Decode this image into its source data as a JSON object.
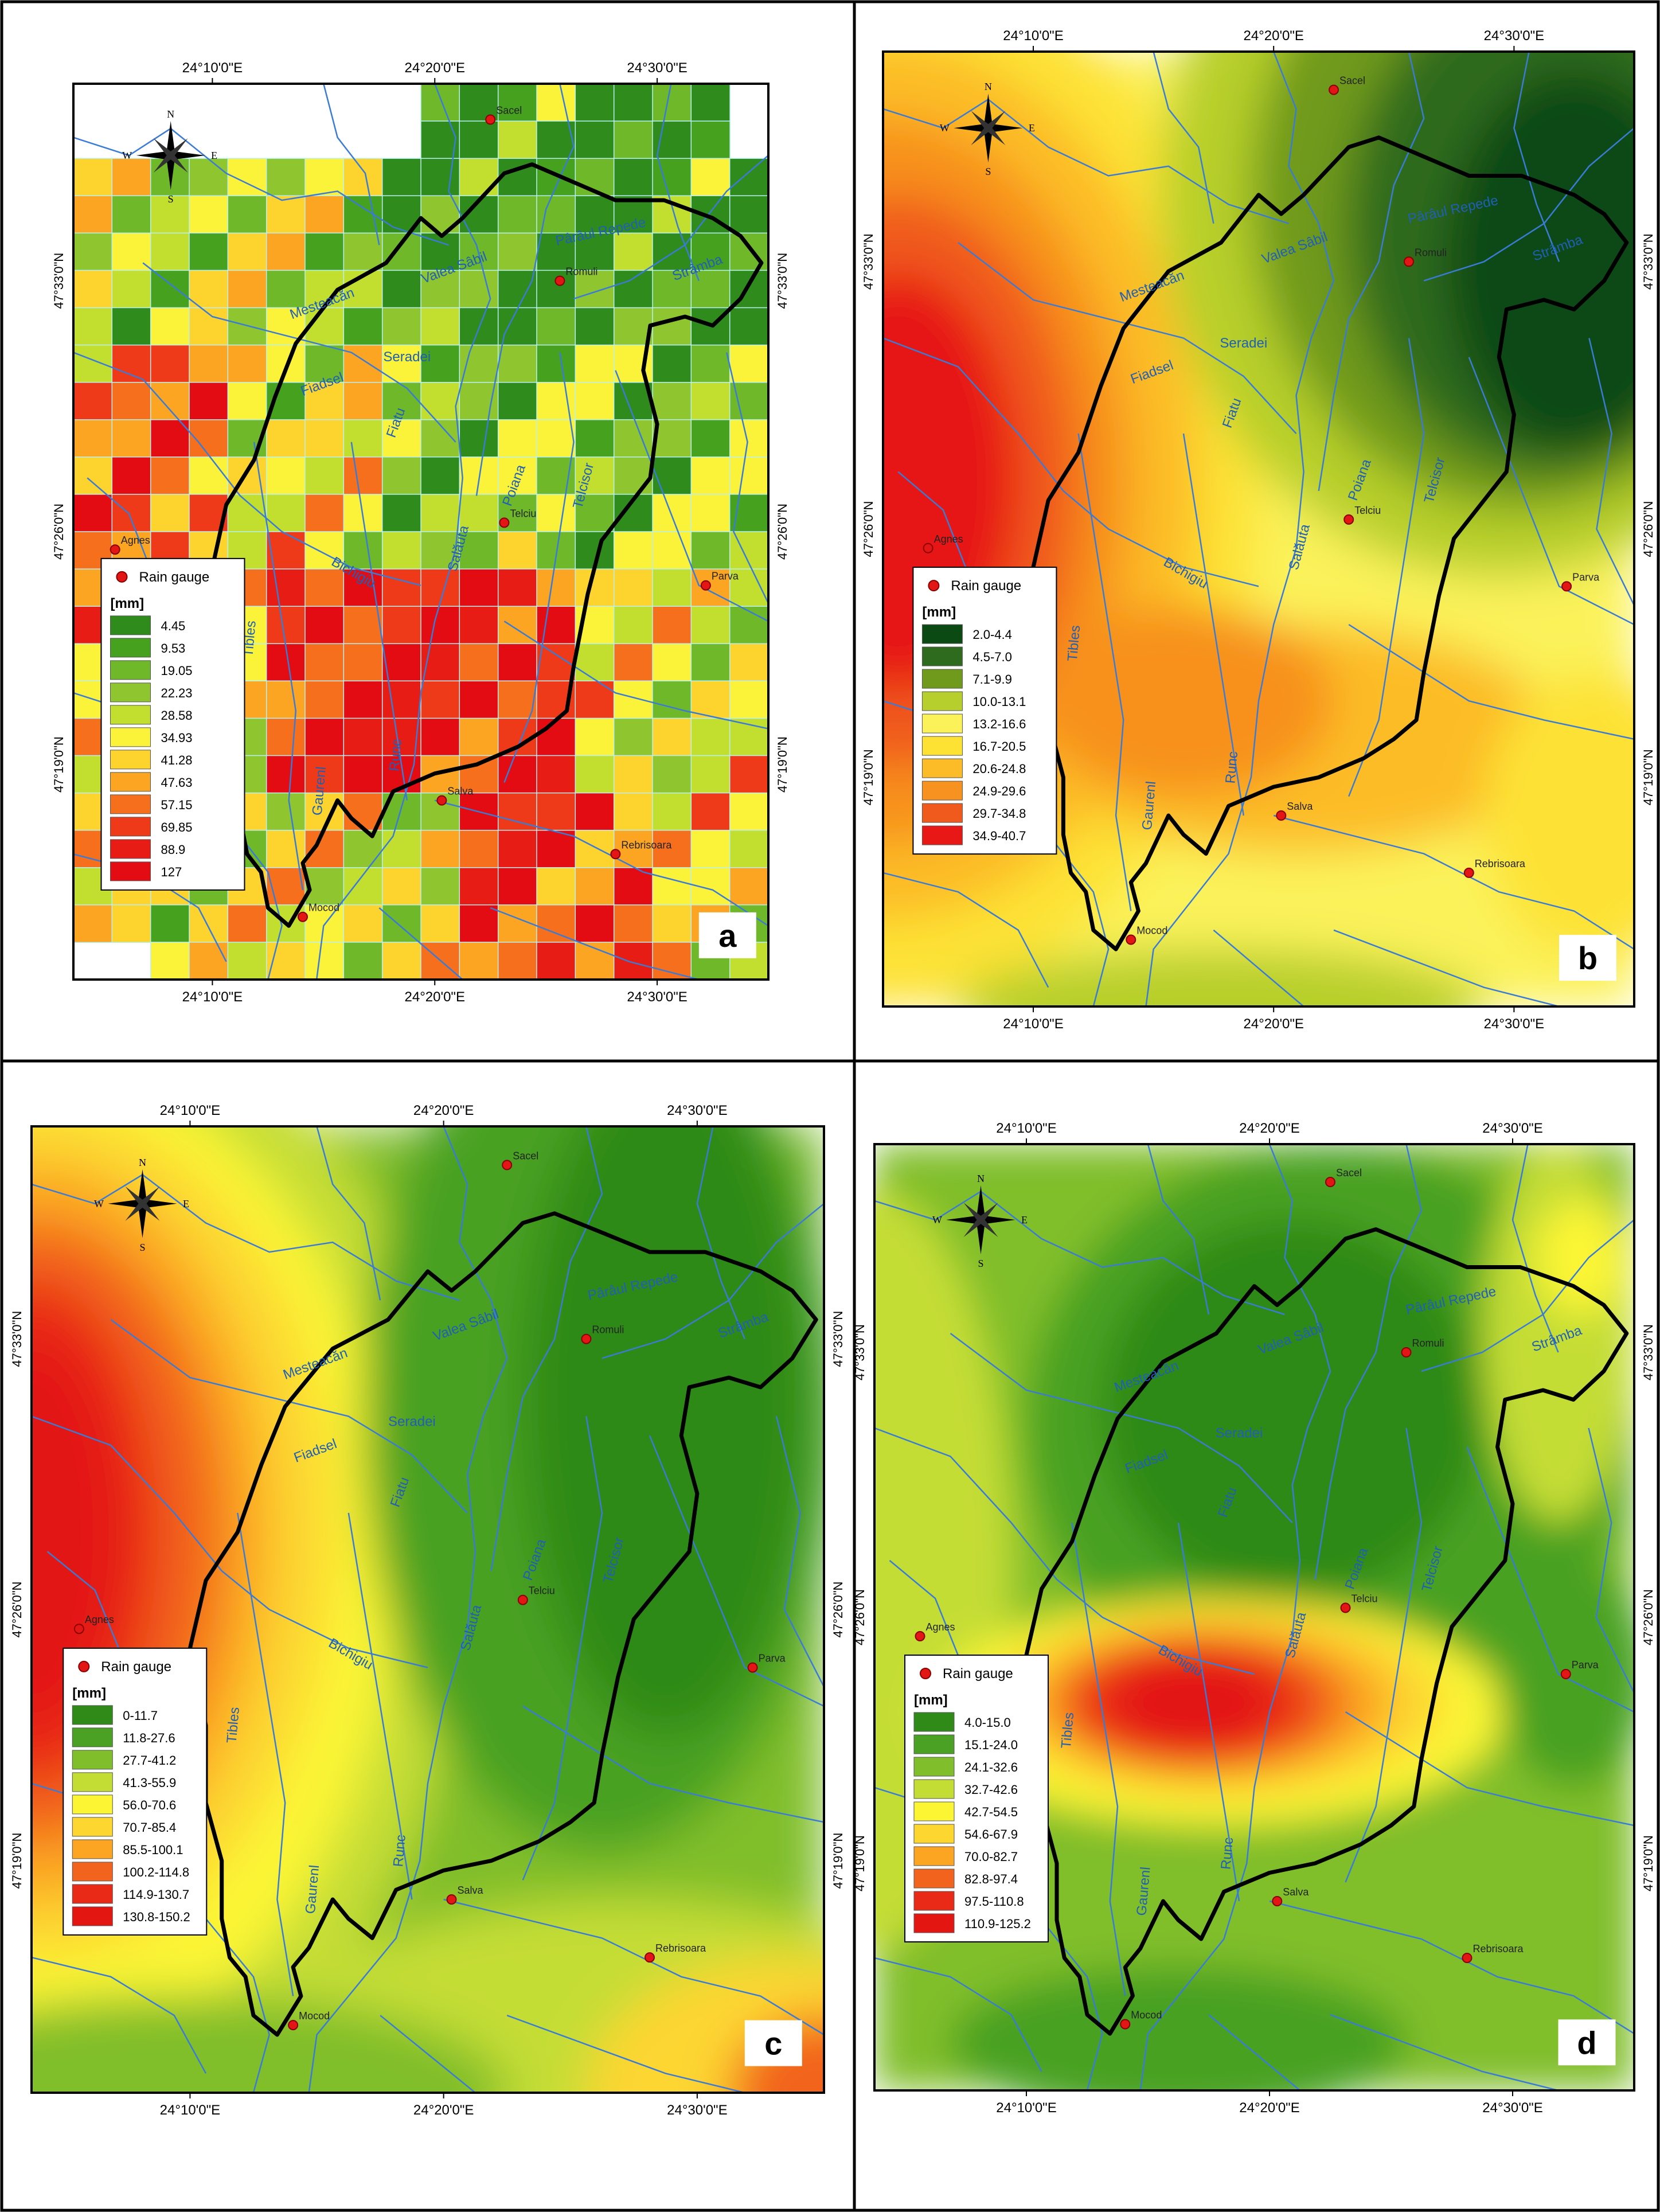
{
  "lon_ticks": [
    "24°10'0\"E",
    "24°20'0\"E",
    "24°30'0\"E"
  ],
  "lat_ticks": [
    "47°33'0\"N",
    "47°26'0\"N",
    "47°19'0\"N"
  ],
  "compass": {
    "n": "N",
    "s": "S",
    "e": "E",
    "w": "W"
  },
  "legend": {
    "gauge_label": "Rain gauge",
    "unit": "[mm]"
  },
  "gauges": [
    "Sacel",
    "Romuli",
    "Agnes",
    "Telciu",
    "Parva",
    "Salva",
    "Rebrisoara",
    "Mocod"
  ],
  "rivers": [
    "Pârâul Repede",
    "Valea Sâbil",
    "Strâmba",
    "Seradei",
    "Fiadsel",
    "Fiatu",
    "Poiana",
    "Telcisor",
    "Salăuta",
    "Bichigiu",
    "Tibles",
    "Gaurenl",
    "Runc",
    "Mesteacăn"
  ],
  "panels": [
    {
      "letter": "a",
      "classes": [
        "4.45",
        "9.53",
        "19.05",
        "22.23",
        "28.58",
        "34.93",
        "41.28",
        "47.63",
        "57.15",
        "69.85",
        "88.9",
        "127"
      ]
    },
    {
      "letter": "b",
      "classes": [
        "2.0-4.4",
        "4.5-7.0",
        "7.1-9.9",
        "10.0-13.1",
        "13.2-16.6",
        "16.7-20.5",
        "20.6-24.8",
        "24.9-29.6",
        "29.7-34.8",
        "34.9-40.7"
      ]
    },
    {
      "letter": "c",
      "classes": [
        "0-11.7",
        "11.8-27.6",
        "27.7-41.2",
        "41.3-55.9",
        "56.0-70.6",
        "70.7-85.4",
        "85.5-100.1",
        "100.2-114.8",
        "114.9-130.7",
        "130.8-150.2"
      ]
    },
    {
      "letter": "d",
      "classes": [
        "4.0-15.0",
        "15.1-24.0",
        "24.1-32.6",
        "32.7-42.6",
        "42.7-54.5",
        "54.6-67.9",
        "70.0-82.7",
        "82.8-97.4",
        "97.5-110.8",
        "110.9-125.2"
      ]
    }
  ],
  "colors": {
    "ramp12": [
      "#2e8b1c",
      "#46a11f",
      "#6eb82a",
      "#8fc52e",
      "#c2df2f",
      "#fbf33a",
      "#fdd32d",
      "#fba522",
      "#f56f1d",
      "#ee3a18",
      "#e61c15",
      "#e30c12"
    ],
    "ramp10_b": [
      "#0c4a14",
      "#2f6b1e",
      "#6f9a1c",
      "#b7cf2c",
      "#fbf25a",
      "#fde234",
      "#fcbc27",
      "#f7911f",
      "#f05a1c",
      "#e71816"
    ],
    "ramp10_cd": [
      "#2f8a18",
      "#4aa123",
      "#80be2c",
      "#c4dd34",
      "#fbf534",
      "#fdd630",
      "#fba523",
      "#f2641d",
      "#e92a17",
      "#e31612"
    ],
    "river": "#3a7bd5",
    "boundary": "#000000",
    "gauge": "#e31616"
  }
}
